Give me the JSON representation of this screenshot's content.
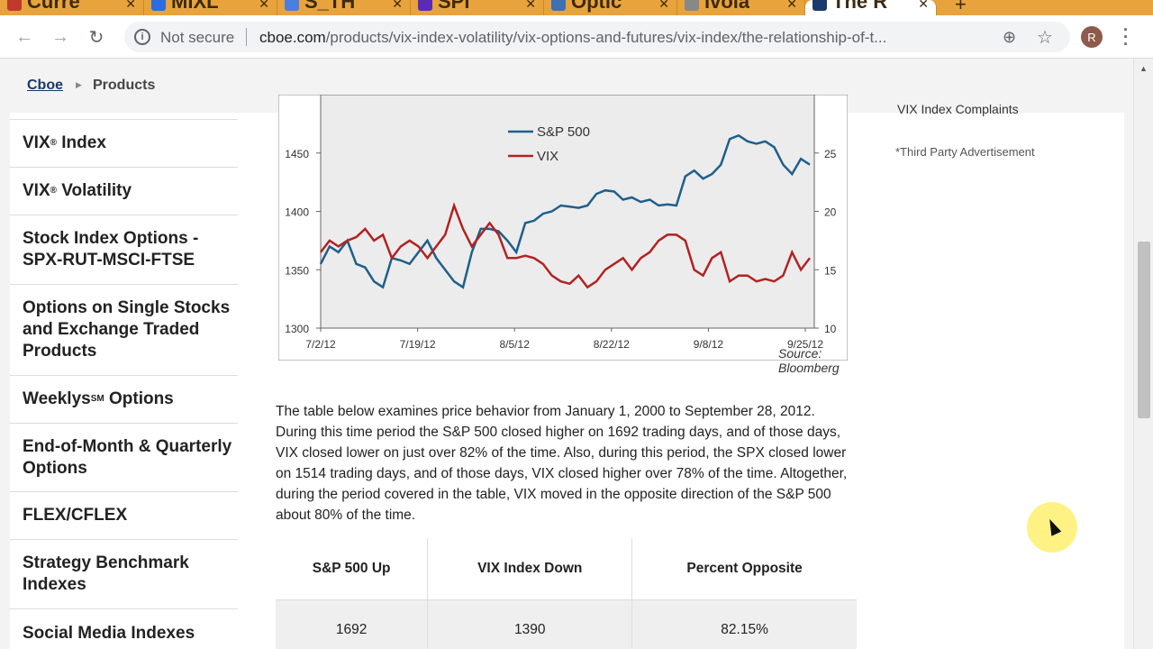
{
  "browser": {
    "tabs": [
      {
        "label": "Curre",
        "active": false
      },
      {
        "label": "MIXL",
        "active": false
      },
      {
        "label": "S_TH",
        "active": false
      },
      {
        "label": "SPI",
        "active": false
      },
      {
        "label": "Optic",
        "active": false
      },
      {
        "label": "Ivola",
        "active": false
      },
      {
        "label": "The R",
        "active": true
      }
    ],
    "security_label": "Not secure",
    "url_host": "cboe.com",
    "url_path": "/products/vix-index-volatility/vix-options-and-futures/vix-index/the-relationship-of-t...",
    "avatar_letter": "R"
  },
  "breadcrumb": {
    "home": "Cboe",
    "current": "Products"
  },
  "sidebar": {
    "items": [
      {
        "label": "VIX",
        "mark": "®",
        "suffix": " Index"
      },
      {
        "label": "VIX",
        "mark": "®",
        "suffix": " Volatility"
      },
      {
        "label": "Stock Index Options - SPX-RUT-MSCI-FTSE",
        "mark": "",
        "suffix": ""
      },
      {
        "label": "Options on Single Stocks and Exchange Traded Products",
        "mark": "",
        "suffix": ""
      },
      {
        "label": "Weeklys",
        "mark": "SM",
        "suffix": " Options"
      },
      {
        "label": "End-of-Month & Quarterly Options",
        "mark": "",
        "suffix": ""
      },
      {
        "label": "FLEX/CFLEX",
        "mark": "",
        "suffix": ""
      },
      {
        "label": "Strategy Benchmark Indexes",
        "mark": "",
        "suffix": ""
      },
      {
        "label": "Social Media Indexes",
        "mark": "",
        "suffix": ""
      }
    ]
  },
  "right_rail": {
    "cut_text": "VIX Index Complaints",
    "ad_note": "*Third Party Advertisement"
  },
  "chart_data": {
    "type": "line",
    "x_tick_labels": [
      "7/2/12",
      "7/19/12",
      "8/5/12",
      "8/22/12",
      "9/8/12",
      "9/25/12"
    ],
    "y_left": {
      "ticks": [
        1300,
        1350,
        1400,
        1450
      ],
      "range": [
        1300,
        1500
      ]
    },
    "y_right": {
      "ticks": [
        10,
        15,
        20,
        25
      ],
      "range": [
        10,
        30
      ]
    },
    "legend": {
      "position": "top-center"
    },
    "series": [
      {
        "name": "S&P 500",
        "color": "#1f5f8b",
        "axis": "left",
        "values": [
          1355,
          1370,
          1365,
          1375,
          1355,
          1352,
          1340,
          1335,
          1360,
          1358,
          1355,
          1365,
          1375,
          1360,
          1350,
          1340,
          1335,
          1365,
          1385,
          1385,
          1383,
          1375,
          1365,
          1390,
          1392,
          1398,
          1400,
          1405,
          1404,
          1403,
          1405,
          1415,
          1418,
          1417,
          1410,
          1412,
          1408,
          1410,
          1405,
          1406,
          1405,
          1430,
          1435,
          1428,
          1432,
          1440,
          1462,
          1465,
          1460,
          1458,
          1460,
          1455,
          1440,
          1432,
          1445,
          1440
        ]
      },
      {
        "name": "VIX",
        "color": "#b22222",
        "axis": "right",
        "values": [
          16.5,
          17.5,
          17.0,
          17.5,
          17.8,
          18.5,
          17.5,
          18.0,
          16.0,
          17.0,
          17.5,
          17.0,
          16.0,
          17.0,
          18.0,
          20.5,
          18.5,
          17.0,
          18.0,
          19.0,
          18.0,
          16.0,
          16.0,
          16.2,
          16.0,
          15.5,
          14.5,
          14.0,
          13.8,
          14.5,
          13.5,
          14.0,
          15.0,
          15.5,
          16.0,
          15.0,
          16.0,
          16.5,
          17.5,
          18.0,
          18.0,
          17.5,
          15.0,
          14.5,
          16.0,
          16.5,
          14.0,
          14.5,
          14.5,
          14.0,
          14.2,
          14.0,
          14.5,
          16.5,
          15.0,
          16.0
        ]
      }
    ],
    "source": "Source: Bloomberg"
  },
  "content": {
    "paragraph": "The table below examines price behavior from January 1, 2000 to September 28, 2012. During this time period the S&P 500 closed higher on 1692 trading days, and of those days, VIX closed lower on just over 82% of the time. Also, during this period, the SPX closed lower on 1514 trading days, and of those days, VIX closed higher over 78% of the time. Altogether, during the period covered in the table, VIX moved in the opposite direction of the S&P 500 about 80% of the time."
  },
  "table": {
    "headers": [
      "S&P 500 Up",
      "VIX Index Down",
      "Percent Opposite"
    ],
    "rows": [
      [
        "1692",
        "1390",
        "82.15%"
      ]
    ]
  }
}
